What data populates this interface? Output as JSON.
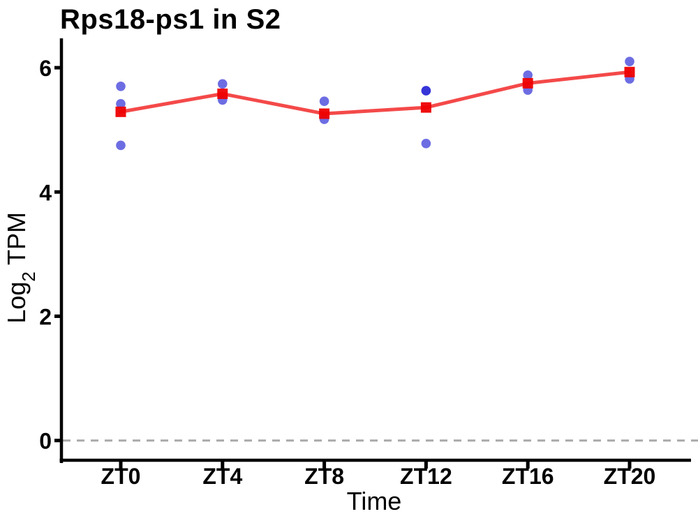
{
  "chart_data": {
    "type": "line",
    "title": "Rps18-ps1 in S2",
    "xlabel": "Time",
    "ylabel": "Log2 TPM",
    "ylabel_parts": {
      "prefix": "Log",
      "sub": "2",
      "suffix": " TPM"
    },
    "categories": [
      "ZT0",
      "ZT4",
      "ZT8",
      "ZT12",
      "ZT16",
      "ZT20"
    ],
    "yticks": [
      "0",
      "2",
      "4",
      "6"
    ],
    "ylim": [
      -0.34,
      6.45
    ],
    "grid": false,
    "legend": "none",
    "colors": {
      "mean_marker": "#ee0000",
      "mean_line": "#f22929",
      "replicate_dot": "#1414d2",
      "reference_line": "#a9a9a9",
      "axis": "#000000"
    },
    "series": [
      {
        "name": "mean",
        "type": "line",
        "marker": "square",
        "values": [
          5.29,
          5.58,
          5.26,
          5.36,
          5.75,
          5.93
        ]
      },
      {
        "name": "replicates",
        "type": "scatter",
        "marker": "circle",
        "opacity": 0.62,
        "values_by_category": [
          [
            5.7,
            5.42,
            4.75
          ],
          [
            5.74,
            5.48
          ],
          [
            5.46,
            5.17
          ],
          [
            5.63,
            5.63,
            4.78
          ],
          [
            5.88,
            5.64
          ],
          [
            6.1,
            5.82
          ]
        ]
      }
    ],
    "reference_line": {
      "y": 0,
      "style": "dashed",
      "color": "#a9a9a9"
    }
  }
}
